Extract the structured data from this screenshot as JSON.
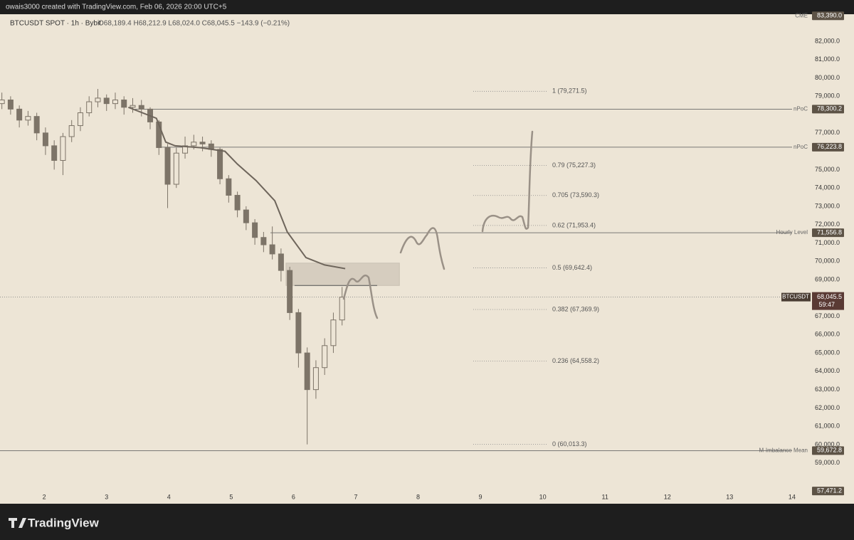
{
  "header": {
    "caption": "owais3000 created with TradingView.com, Feb 06, 2026 20:00 UTC+5",
    "symbol": "BTCUSDT SPOT · 1h · Bybit",
    "ohlc": "O68,189.4 H68,212.9 L68,024.0 C68,045.5 −143.9 (−0.21%)"
  },
  "footer": {
    "brand": "TradingView"
  },
  "chart_data": {
    "type": "candlestick",
    "color": "#7d7468",
    "x": [
      1.32,
      1.46,
      1.6,
      1.74,
      1.88,
      2.02,
      2.16,
      2.3,
      2.44,
      2.58,
      2.72,
      2.86,
      3.0,
      3.14,
      3.28,
      3.42,
      3.56,
      3.7,
      3.84,
      3.98,
      4.12,
      4.26,
      4.4,
      4.54,
      4.68,
      4.82,
      4.96,
      5.1,
      5.24,
      5.38,
      5.52,
      5.66,
      5.8,
      5.94,
      6.08,
      6.22,
      6.36,
      6.5,
      6.64,
      6.78
    ],
    "open": [
      78600,
      78800,
      78300,
      77700,
      77900,
      77000,
      76300,
      75500,
      76800,
      77400,
      78100,
      78700,
      78900,
      78600,
      78800,
      78400,
      78500,
      78300,
      77600,
      76200,
      74200,
      75900,
      76300,
      76500,
      76400,
      76100,
      74500,
      73600,
      72800,
      72100,
      71300,
      70900,
      70400,
      69500,
      67200,
      65000,
      63000,
      64200,
      65400,
      66800
    ],
    "high": [
      79200,
      79000,
      78500,
      78200,
      78100,
      77300,
      76600,
      77000,
      77700,
      78400,
      79000,
      79400,
      79100,
      79200,
      79000,
      78900,
      78800,
      78400,
      77700,
      76400,
      76200,
      76800,
      76900,
      76800,
      76600,
      76200,
      74700,
      73800,
      73000,
      72300,
      71600,
      71900,
      70700,
      69700,
      67400,
      65300,
      64600,
      65800,
      67200,
      68600
    ],
    "low": [
      78300,
      78000,
      77300,
      77400,
      76600,
      75800,
      75000,
      74700,
      76500,
      77100,
      77900,
      78400,
      78200,
      78300,
      78000,
      78100,
      77900,
      77200,
      75800,
      72900,
      74000,
      75600,
      76100,
      76000,
      75700,
      74200,
      73200,
      72400,
      71700,
      70900,
      70500,
      70100,
      68900,
      66800,
      64200,
      60013.3,
      62500,
      63800,
      65000,
      66500
    ],
    "close": [
      78800,
      78300,
      77700,
      77900,
      77000,
      76300,
      75500,
      76800,
      77400,
      78100,
      78700,
      78900,
      78600,
      78800,
      78400,
      78500,
      78300,
      77600,
      76200,
      74200,
      75900,
      76300,
      76500,
      76400,
      76100,
      74500,
      73600,
      72800,
      72100,
      71300,
      70900,
      70400,
      69500,
      67200,
      65000,
      63000,
      64200,
      65400,
      66800,
      68045.5
    ],
    "overlay": {
      "color": "#6e655b",
      "x": [
        3.35,
        3.8,
        3.95,
        4.1,
        4.5,
        4.9,
        5.1,
        5.4,
        5.7,
        5.9,
        6.2,
        6.5,
        6.83
      ],
      "values": [
        78400,
        77800,
        76500,
        76300,
        76200,
        76000,
        75300,
        74400,
        73300,
        71600,
        70200,
        69800,
        69600
      ]
    },
    "zone": {
      "x": [
        5.88,
        7.7
      ],
      "values": [
        69900,
        68680
      ]
    },
    "xlim": [
      1.29,
      14.31
    ],
    "xticks": [
      2,
      3,
      4,
      5,
      6,
      7,
      8,
      9,
      10,
      11,
      12,
      13,
      14
    ],
    "ylim": [
      57475,
      83475
    ],
    "yticks": [
      {
        "value": 59000,
        "label": "59,000.0"
      },
      {
        "value": 60000,
        "label": "60,000.0"
      },
      {
        "value": 61000,
        "label": "61,000.0"
      },
      {
        "value": 62000,
        "label": "62,000.0"
      },
      {
        "value": 63000,
        "label": "63,000.0"
      },
      {
        "value": 64000,
        "label": "64,000.0"
      },
      {
        "value": 65000,
        "label": "65,000.0"
      },
      {
        "value": 66000,
        "label": "66,000.0"
      },
      {
        "value": 67000,
        "label": "67,000.0"
      },
      {
        "value": 69000,
        "label": "69,000.0"
      },
      {
        "value": 70000,
        "label": "70,000.0"
      },
      {
        "value": 71000,
        "label": "71,000.0"
      },
      {
        "value": 72000,
        "label": "72,000.0"
      },
      {
        "value": 73000,
        "label": "73,000.0"
      },
      {
        "value": 74000,
        "label": "74,000.0"
      },
      {
        "value": 75000,
        "label": "75,000.0"
      },
      {
        "value": 77000,
        "label": "77,000.0"
      },
      {
        "value": 79000,
        "label": "79,000.0"
      },
      {
        "value": 80000,
        "label": "80,000.0"
      },
      {
        "value": 81000,
        "label": "81,000.0"
      },
      {
        "value": 82000,
        "label": "82,000.0"
      }
    ],
    "grid": false,
    "levels": [
      {
        "name": "CME",
        "value": 83390,
        "label": "83,390.0"
      },
      {
        "name": "nPoC",
        "value": 78300.2,
        "label": "78,300.2"
      },
      {
        "name": "nPoC",
        "value": 76223.8,
        "label": "76,223.8"
      },
      {
        "name": "Hourly Level",
        "value": 71556.8,
        "label": "71,556.8"
      },
      {
        "name": "M-Imbalance Mean",
        "value": 59672.8,
        "label": "59,672.8"
      },
      {
        "value": 57471.2,
        "label": "57,471.2"
      }
    ],
    "current": {
      "name": "BTCUSDT",
      "value": 68045.5,
      "label": "68,045.5",
      "countdown": "59:47"
    },
    "fib": [
      {
        "label": "1 (79,271.5)",
        "value": 79271.5
      },
      {
        "label": "0.79 (75,227.3)",
        "value": 75227.3
      },
      {
        "label": "0.705 (73,590.3)",
        "value": 73590.3
      },
      {
        "label": "0.62 (71,953.4)",
        "value": 71953.4
      },
      {
        "label": "0.5 (69,642.4)",
        "value": 69642.4
      },
      {
        "label": "0.382 (67,369.9)",
        "value": 67369.9
      },
      {
        "label": "0.236 (64,558.2)",
        "value": 64558.2
      },
      {
        "label": "0 (60,013.3)",
        "value": 60013.3
      }
    ]
  }
}
